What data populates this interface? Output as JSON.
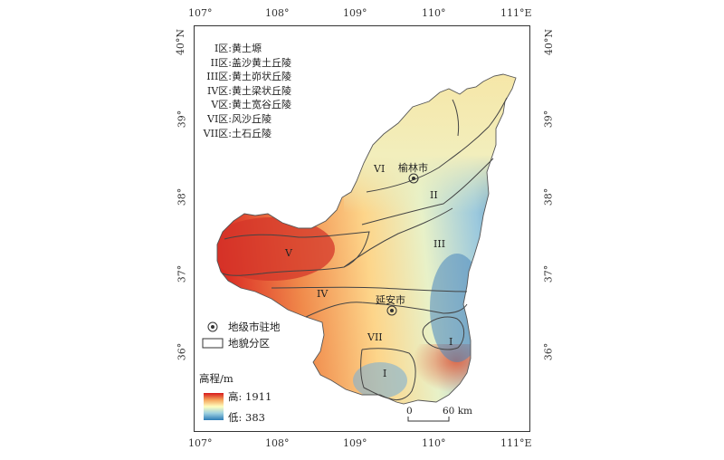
{
  "map": {
    "lon_ticks": [
      "107°",
      "108°",
      "109°",
      "110°",
      "111°E"
    ],
    "lat_ticks_left": [
      "40°N",
      "39°",
      "38°",
      "37°",
      "36°"
    ],
    "lat_ticks_right": [
      "40°N",
      "39°",
      "38°",
      "37°",
      "36°"
    ],
    "zone_legend": [
      {
        "code": "I区:",
        "name": "黄土塬"
      },
      {
        "code": "II区:",
        "name": "盖沙黄土丘陵"
      },
      {
        "code": "III区:",
        "name": "黄土峁状丘陵"
      },
      {
        "code": "IV区:",
        "name": "黄土梁状丘陵"
      },
      {
        "code": "V区:",
        "name": "黄土宽谷丘陵"
      },
      {
        "code": "VI区:",
        "name": "风沙丘陵"
      },
      {
        "code": "VII区:",
        "name": "土石丘陵"
      }
    ],
    "symbol_legend": {
      "city_seat": "地级市驻地",
      "zone_boundary": "地貌分区"
    },
    "elevation_legend": {
      "title": "高程/m",
      "high": "高: 1911",
      "low": "低: 383",
      "colors": [
        "#d7191c",
        "#fdae61",
        "#ffffbf",
        "#abd9e9",
        "#2c7bb6"
      ]
    },
    "zone_labels": [
      "VI",
      "II",
      "III",
      "V",
      "IV",
      "VII",
      "I",
      "I"
    ],
    "cities": [
      "榆林市",
      "延安市"
    ],
    "scale_bar": {
      "zero": "0",
      "end": "60 km"
    }
  }
}
